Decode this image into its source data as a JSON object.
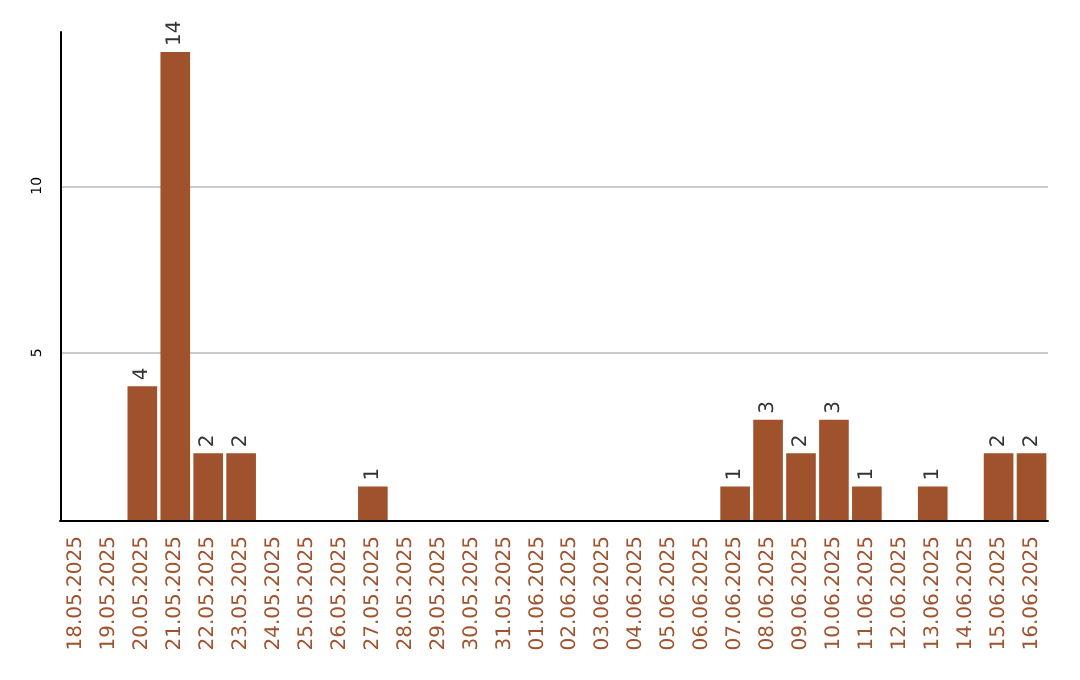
{
  "chart_data": {
    "type": "bar",
    "categories": [
      "18.05.2025",
      "19.05.2025",
      "20.05.2025",
      "21.05.2025",
      "22.05.2025",
      "23.05.2025",
      "24.05.2025",
      "25.05.2025",
      "26.05.2025",
      "27.05.2025",
      "28.05.2025",
      "29.05.2025",
      "30.05.2025",
      "31.05.2025",
      "01.06.2025",
      "02.06.2025",
      "03.06.2025",
      "04.06.2025",
      "05.06.2025",
      "06.06.2025",
      "07.06.2025",
      "08.06.2025",
      "09.06.2025",
      "10.06.2025",
      "11.06.2025",
      "12.06.2025",
      "13.06.2025",
      "14.06.2025",
      "15.06.2025",
      "16.06.2025"
    ],
    "values": [
      0,
      0,
      4,
      14,
      2,
      2,
      0,
      0,
      0,
      1,
      0,
      0,
      0,
      0,
      0,
      0,
      0,
      0,
      0,
      0,
      1,
      3,
      2,
      3,
      1,
      0,
      1,
      0,
      2,
      2
    ],
    "value_labels": [
      null,
      null,
      "4",
      "14",
      "2",
      "2",
      null,
      null,
      null,
      "1",
      null,
      null,
      null,
      null,
      null,
      null,
      null,
      null,
      null,
      null,
      "1",
      "3",
      "2",
      "3",
      "1",
      null,
      "1",
      null,
      "2",
      "2"
    ],
    "color": "#a0522d",
    "ylim": [
      0,
      14.6
    ],
    "yticks": [
      5,
      10
    ],
    "grid": "y"
  }
}
